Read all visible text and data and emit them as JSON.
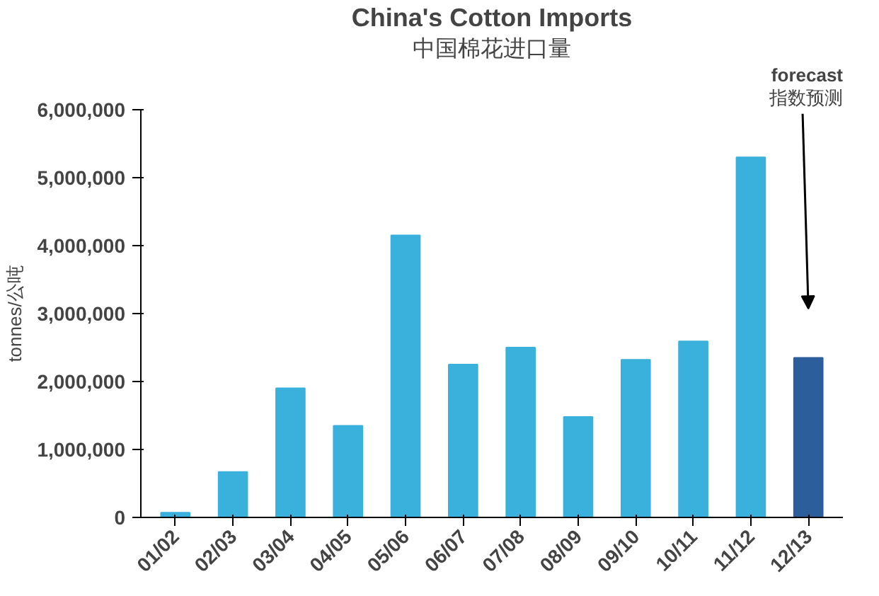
{
  "chart_data": {
    "type": "bar",
    "title": "China's Cotton Imports",
    "subtitle": "中国棉花进口量",
    "ylabel": "tonnes/公吨",
    "categories": [
      "01/02",
      "02/03",
      "03/04",
      "04/05",
      "05/06",
      "06/07",
      "07/08",
      "08/09",
      "09/10",
      "10/11",
      "11/12",
      "12/13"
    ],
    "values": [
      70000,
      670000,
      1900000,
      1350000,
      4150000,
      2250000,
      2500000,
      1480000,
      2320000,
      2590000,
      5300000,
      2350000
    ],
    "colors": [
      "#3ab0dc",
      "#3ab0dc",
      "#3ab0dc",
      "#3ab0dc",
      "#3ab0dc",
      "#3ab0dc",
      "#3ab0dc",
      "#3ab0dc",
      "#3ab0dc",
      "#3ab0dc",
      "#3ab0dc",
      "#2d5e9c"
    ],
    "ylim": [
      0,
      6000000
    ],
    "yticks": [
      {
        "value": 0,
        "label": "0"
      },
      {
        "value": 1000000,
        "label": "1,000,000"
      },
      {
        "value": 2000000,
        "label": "2,000,000"
      },
      {
        "value": 3000000,
        "label": "3,000,000"
      },
      {
        "value": 4000000,
        "label": "4,000,000"
      },
      {
        "value": 5000000,
        "label": "5,000,000"
      },
      {
        "value": 6000000,
        "label": "6,000,000"
      }
    ],
    "grid": false,
    "annotations": [
      "forecast",
      "指数预测"
    ]
  }
}
